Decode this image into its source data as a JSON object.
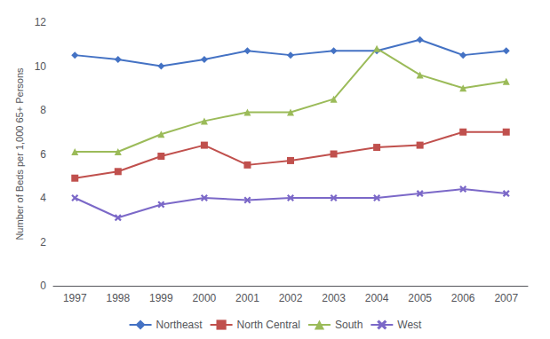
{
  "chart_data": {
    "type": "line",
    "categories": [
      "1997",
      "1998",
      "1999",
      "2000",
      "2001",
      "2002",
      "2003",
      "2004",
      "2005",
      "2006",
      "2007"
    ],
    "series": [
      {
        "name": "Northeast",
        "color": "#4472C4",
        "marker": "diamond",
        "values": [
          10.5,
          10.3,
          10.0,
          10.3,
          10.7,
          10.5,
          10.7,
          10.7,
          11.2,
          10.5,
          10.7
        ]
      },
      {
        "name": "North Central",
        "color": "#C0504D",
        "marker": "square",
        "values": [
          4.9,
          5.2,
          5.9,
          6.4,
          5.5,
          5.7,
          6.0,
          6.3,
          6.4,
          7.0,
          7.0
        ]
      },
      {
        "name": "South",
        "color": "#9BBB59",
        "marker": "triangle",
        "values": [
          6.1,
          6.1,
          6.9,
          7.5,
          7.9,
          7.9,
          8.5,
          10.8,
          9.6,
          9.0,
          9.3
        ]
      },
      {
        "name": "West",
        "color": "#7B68C8",
        "marker": "x",
        "values": [
          4.0,
          3.1,
          3.7,
          4.0,
          3.9,
          4.0,
          4.0,
          4.0,
          4.2,
          4.4,
          4.2
        ]
      }
    ],
    "ylabel": "Number of Beds per 1,000 65+ Persons",
    "ylim": [
      0,
      12
    ],
    "yticks": [
      0,
      2,
      4,
      6,
      8,
      10,
      12
    ],
    "grid": false,
    "legend": "bottom"
  }
}
